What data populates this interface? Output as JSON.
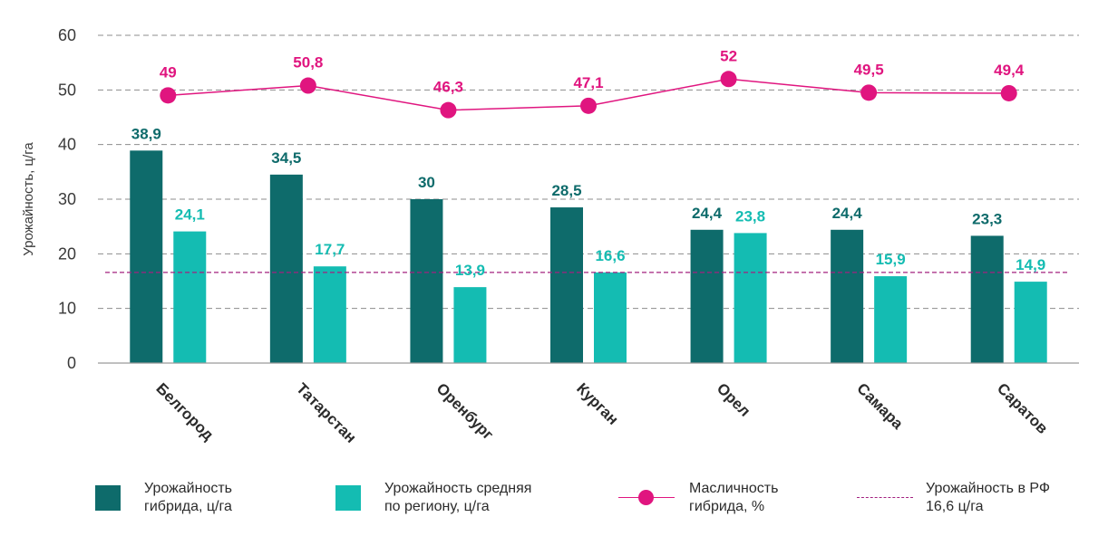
{
  "chart_data": {
    "type": "bar",
    "ylabel": "Урожайность, ц/га",
    "ylim": [
      0,
      60
    ],
    "yticks": [
      0,
      10,
      20,
      30,
      40,
      50,
      60
    ],
    "categories": [
      "Белгород",
      "Татарстан",
      "Оренбург",
      "Курган",
      "Орел",
      "Самара",
      "Саратов"
    ],
    "series": [
      {
        "name": "Урожайность гибрида, ц/га",
        "kind": "bar",
        "color": "#0e6b6b",
        "values": [
          38.9,
          34.5,
          30,
          28.5,
          24.4,
          24.4,
          23.3
        ],
        "labels": [
          "38,9",
          "34,5",
          "30",
          "28,5",
          "24,4",
          "24,4",
          "23,3"
        ]
      },
      {
        "name": "Урожайность средняя по региону, ц/га",
        "kind": "bar",
        "color": "#14bcb2",
        "values": [
          24.1,
          17.7,
          13.9,
          16.6,
          23.8,
          15.9,
          14.9
        ],
        "labels": [
          "24,1",
          "17,7",
          "13,9",
          "16,6",
          "23,8",
          "15,9",
          "14,9"
        ]
      },
      {
        "name": "Масличность гибрида, %",
        "kind": "line",
        "color": "#e0157f",
        "values": [
          49,
          50.8,
          46.3,
          47.1,
          52,
          49.5,
          49.4
        ],
        "labels": [
          "49",
          "50,8",
          "46,3",
          "47,1",
          "52",
          "49,5",
          "49,4"
        ]
      },
      {
        "name": "Урожайность в РФ 16,6 ц/га",
        "kind": "reference",
        "color": "#a3207f",
        "value": 16.6
      }
    ],
    "grid": true,
    "legend_position": "bottom"
  },
  "legend": [
    {
      "text": "Урожайность\nгибрида, ц/га",
      "color": "#0e6b6b",
      "marker": "square"
    },
    {
      "text": "Урожайность средняя\nпо региону, ц/га",
      "color": "#14bcb2",
      "marker": "square"
    },
    {
      "text": "Масличность\nгибрида, %",
      "color": "#e0157f",
      "marker": "line-dot"
    },
    {
      "text": "Урожайность в РФ\n16,6 ц/га",
      "color": "#a3207f",
      "marker": "dashed"
    }
  ]
}
